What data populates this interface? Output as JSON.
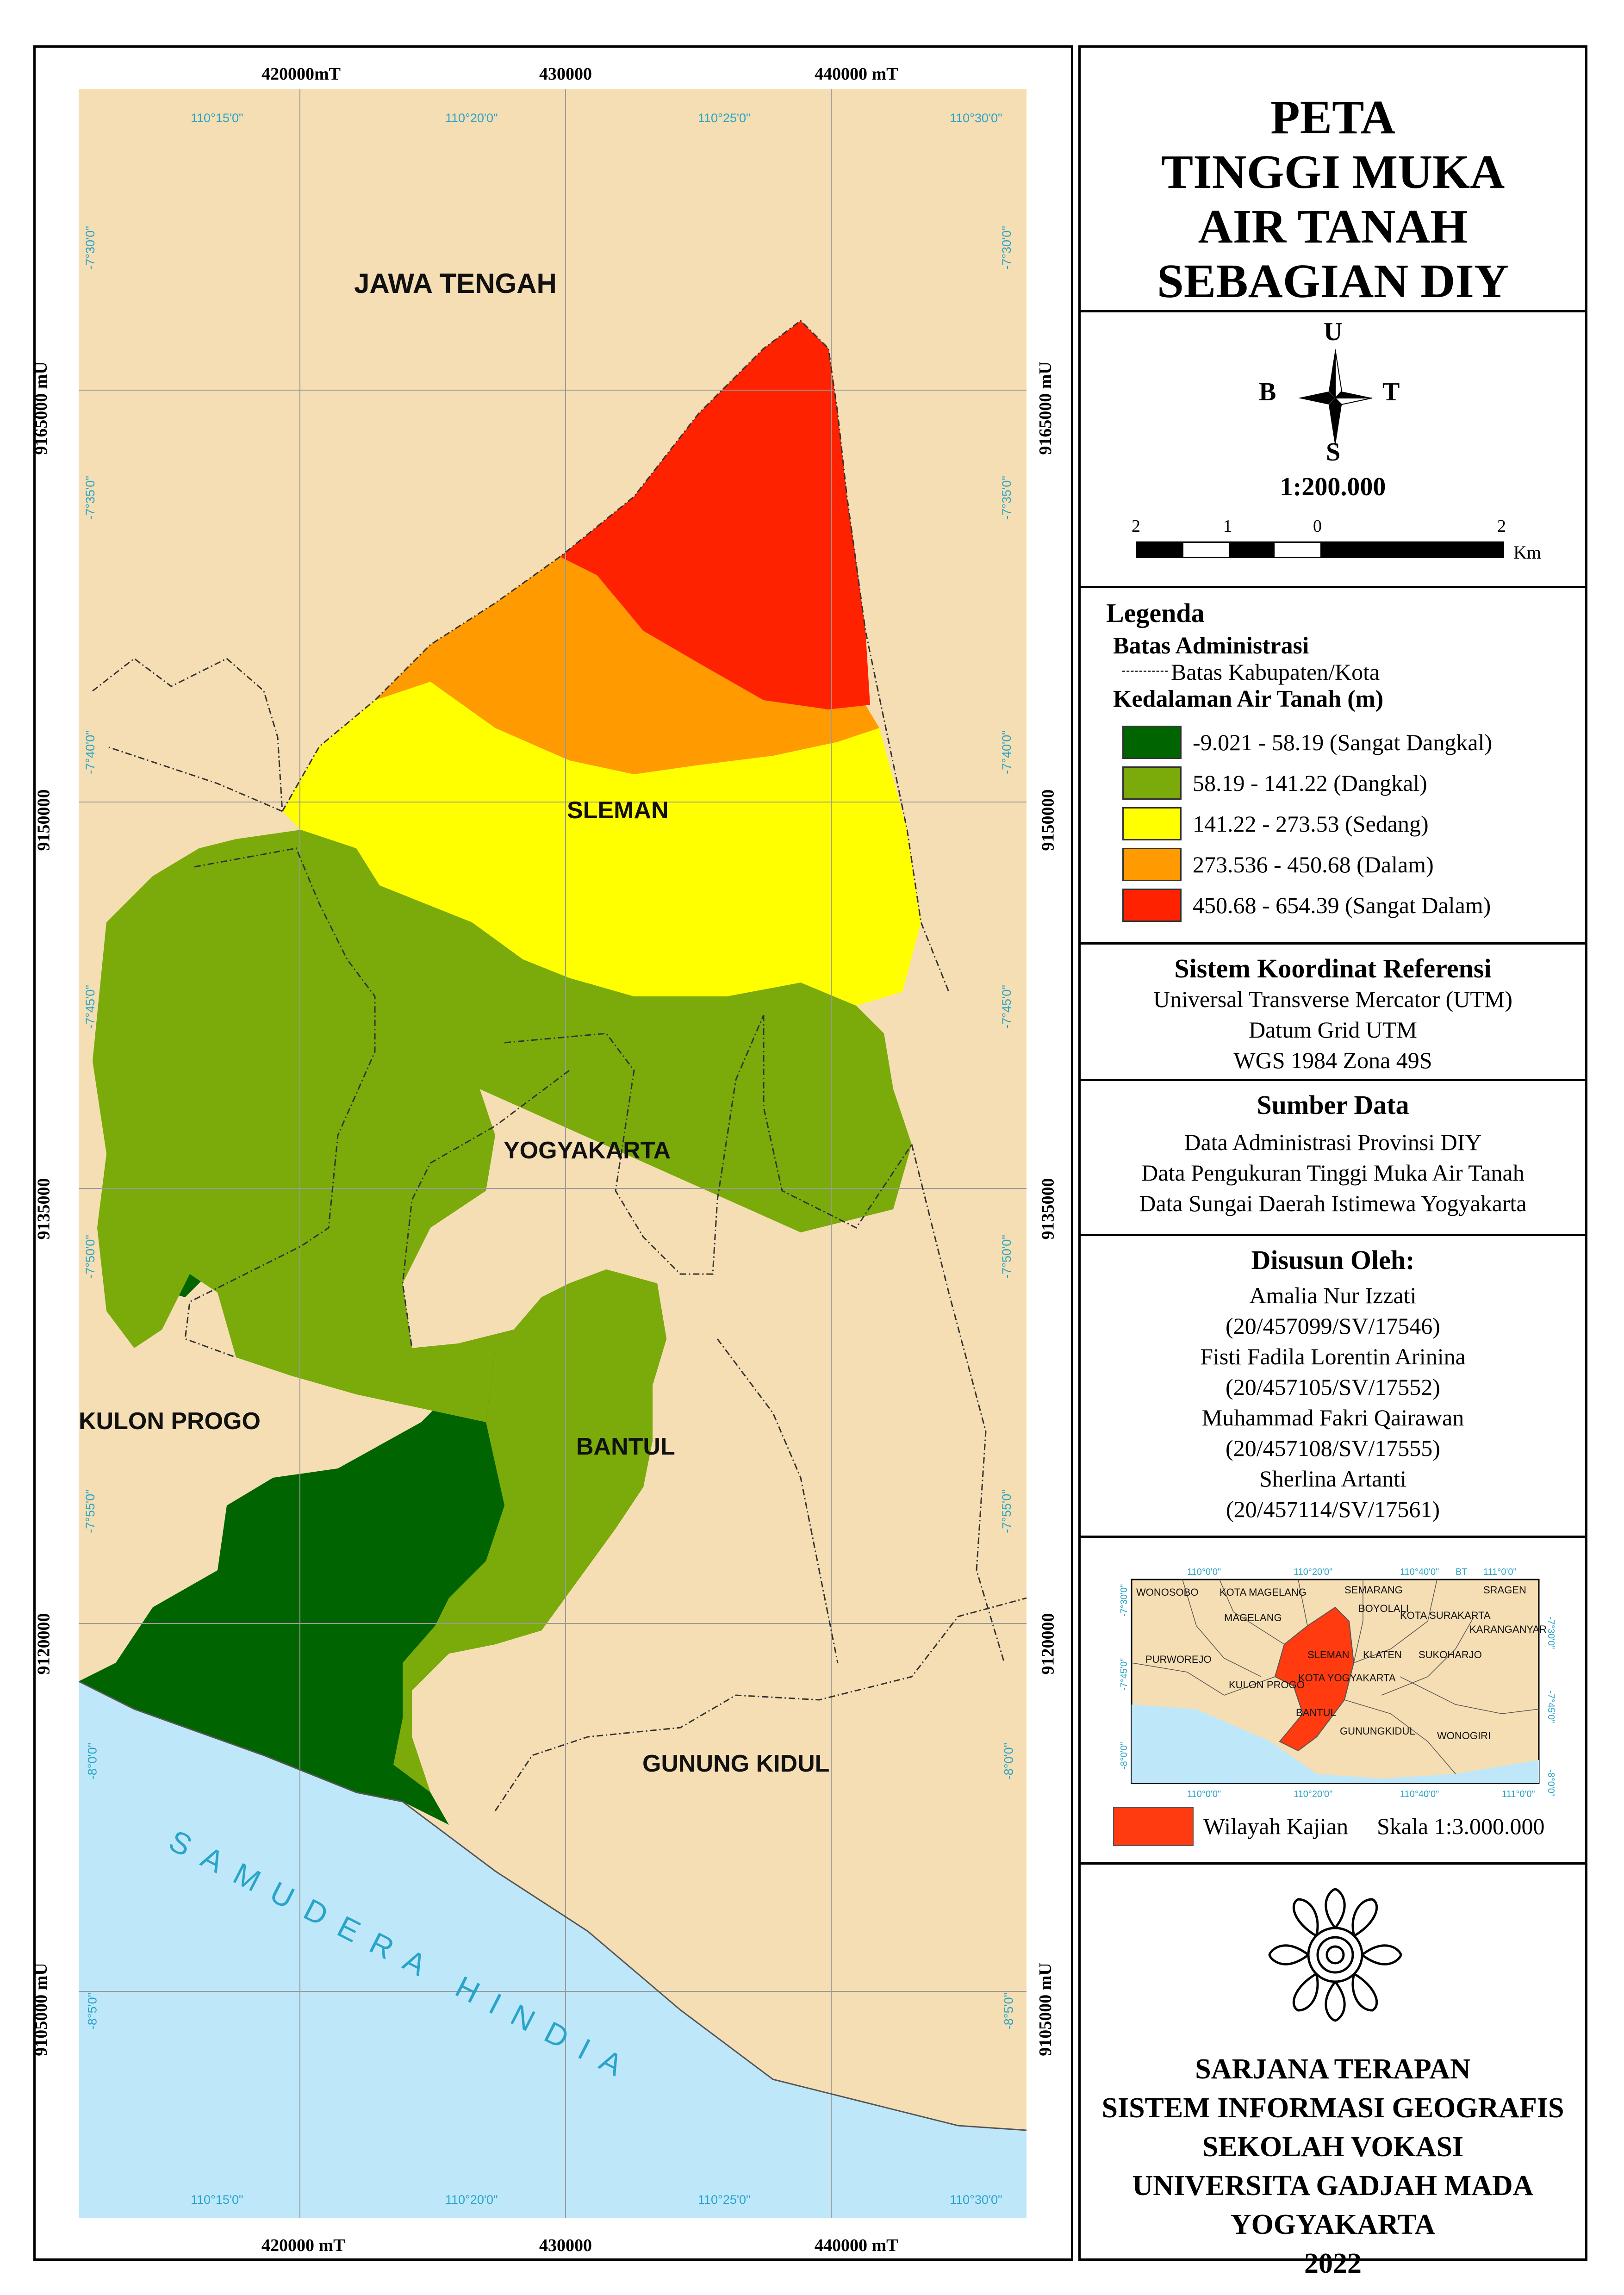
{
  "map": {
    "labels": {
      "jawa_tengah": "JAWA TENGAH",
      "sleman": "SLEMAN",
      "yogyakarta": "YOGYAKARTA",
      "kulon_progo": "KULON PROGO",
      "bantul": "BANTUL",
      "gunung_kidul": "GUNUNG KIDUL",
      "samudera_hindia": "SAMUDERA HINDIA"
    },
    "grid": {
      "easting_top": [
        "420000mT",
        "430000",
        "440000  mT"
      ],
      "easting_bottom": [
        "420000 mT",
        "430000",
        "440000  mT"
      ],
      "northing_left": [
        "9165000 mU",
        "9150000",
        "9135000",
        "9120000",
        "9105000 mU"
      ],
      "northing_right": [
        "9165000 mU",
        "9150000",
        "9135000",
        "9120000",
        "9105000 mU"
      ],
      "lon_top": [
        "110°15'0\"",
        "110°20'0\"",
        "110°25'0\"",
        "110°30'0\""
      ],
      "lon_bottom": [
        "110°15'0\"",
        "110°20'0\"",
        "110°25'0\"",
        "110°30'0\""
      ],
      "lat_left": [
        "-7°30'0\"",
        "-7°35'0\"",
        "-7°40'0\"",
        "-7°45'0\"",
        "-7°50'0\"",
        "-7°55'0\"",
        "-8°0'0\"",
        "-8°5'0\""
      ],
      "lat_right": [
        "-7°30'0\"",
        "-7°35'0\"",
        "-7°40'0\"",
        "-7°45'0\"",
        "-7°50'0\"",
        "-7°55'0\"",
        "-8°0'0\"",
        "-8°5'0\""
      ]
    },
    "colors": {
      "land": "#f5deb3",
      "sea": "#bee8fa",
      "sangat_dangkal": "#006400",
      "dangkal": "#7aab0a",
      "sedang": "#ffff00",
      "dalam": "#ff9a00",
      "sangat_dalam": "#ff2200"
    }
  },
  "panel": {
    "title": [
      "PETA",
      "TINGGI MUKA",
      "AIR TANAH",
      "SEBAGIAN DIY"
    ],
    "compass": {
      "north": "U",
      "south": "S",
      "east": "T",
      "west": "B"
    },
    "scale_text": "1:200.000",
    "scalebar": {
      "ticks": [
        "2",
        "1",
        "0",
        "2"
      ],
      "unit": "Km"
    },
    "legend": {
      "heading": "Legenda",
      "admin_heading": "Batas Administrasi",
      "admin_item": "Batas Kabupaten/Kota",
      "depth_heading": "Kedalaman Air Tanah (m)",
      "classes": [
        {
          "label": "-9.021 - 58.19 (Sangat Dangkal)",
          "color": "#006400"
        },
        {
          "label": "58.19 - 141.22 (Dangkal)",
          "color": "#7aab0a"
        },
        {
          "label": "141.22 - 273.53 (Sedang)",
          "color": "#ffff00"
        },
        {
          "label": "273.536 - 450.68 (Dalam)",
          "color": "#ff9a00"
        },
        {
          "label": "450.68 - 654.39 (Sangat Dalam)",
          "color": "#ff2200"
        }
      ]
    },
    "crs": {
      "heading": "Sistem Koordinat Referensi",
      "lines": [
        "Universal Transverse Mercator (UTM)",
        "Datum Grid UTM",
        "WGS 1984 Zona 49S"
      ]
    },
    "sources": {
      "heading": "Sumber Data",
      "lines": [
        "Data Administrasi Provinsi DIY",
        "Data Pengukuran Tinggi Muka Air Tanah",
        "Data Sungai Daerah Istimewa Yogyakarta"
      ]
    },
    "authors": {
      "heading": "Disusun Oleh:",
      "lines": [
        "Amalia Nur Izzati",
        "(20/457099/SV/17546)",
        "Fisti Fadila Lorentin Arinina",
        "(20/457105/SV/17552)",
        "Muhammad Fakri Qairawan",
        "(20/457108/SV/17555)",
        "Sherlina Artanti",
        "(20/457114/SV/17561)"
      ]
    },
    "inset": {
      "regions": [
        "WONOSOBO",
        "KOTA MAGELANG",
        "SEMARANG",
        "SRAGEN",
        "MAGELANG",
        "BOYOLALI",
        "KOTA SURAKARTA",
        "KARANGANYAR",
        "PURWOREJO",
        "SLEMAN",
        "KLATEN",
        "SUKOHARJO",
        "KOTA YOGYAKARTA",
        "KULON PROGO",
        "BANTUL",
        "GUNUNGKIDUL",
        "WONOGIRI"
      ],
      "lon_top": [
        "110°0'0\"",
        "110°20'0\"",
        "110°40'0\"",
        "BT",
        "111°0'0\""
      ],
      "lon_bottom": [
        "110°0'0\"",
        "110°20'0\"",
        "110°40'0\"",
        "111°0'0\""
      ],
      "lat_left": [
        "-7°30'0\"",
        "-7°45'0\"",
        "-8°0'0\""
      ],
      "lat_right": [
        "-7°30'0\"",
        "-7°45'0\"",
        "-8°0'0\""
      ],
      "legend_label": "Wilayah Kajian",
      "scale": "Skala 1:3.000.000"
    },
    "footer": [
      "SARJANA TERAPAN",
      "SISTEM INFORMASI GEOGRAFIS",
      "SEKOLAH VOKASI",
      "UNIVERSITA GADJAH MADA",
      "YOGYAKARTA",
      "2022"
    ]
  }
}
